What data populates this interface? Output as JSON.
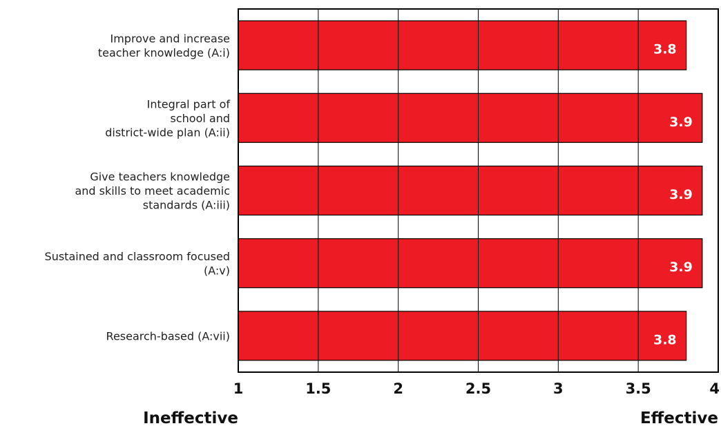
{
  "chart_data": {
    "type": "bar",
    "orientation": "horizontal",
    "categories": [
      [
        "Improve and increase",
        "teacher knowledge (A:i)"
      ],
      [
        "Integral part of",
        "school and",
        "district-wide plan (A:ii)"
      ],
      [
        "Give teachers knowledge",
        "and skills to meet academic",
        "standards (A:iii)"
      ],
      [
        "Sustained and classroom focused",
        "(A:v)"
      ],
      [
        "Research-based (A:vii)"
      ]
    ],
    "values": [
      3.8,
      3.9,
      3.9,
      3.9,
      3.8
    ],
    "value_labels": [
      "3.8",
      "3.9",
      "3.9",
      "3.9",
      "3.8"
    ],
    "xlim": [
      1,
      4
    ],
    "ticks": [
      1,
      1.5,
      2,
      2.5,
      3,
      3.5,
      4
    ],
    "tick_labels": [
      "1",
      "1.5",
      "2",
      "2.5",
      "3",
      "3.5",
      "4"
    ],
    "scale_low_label": "Ineffective",
    "scale_high_label": "Effective",
    "grid": true,
    "bar_color": "#ed1c24",
    "title": "",
    "xlabel": "",
    "ylabel": ""
  }
}
